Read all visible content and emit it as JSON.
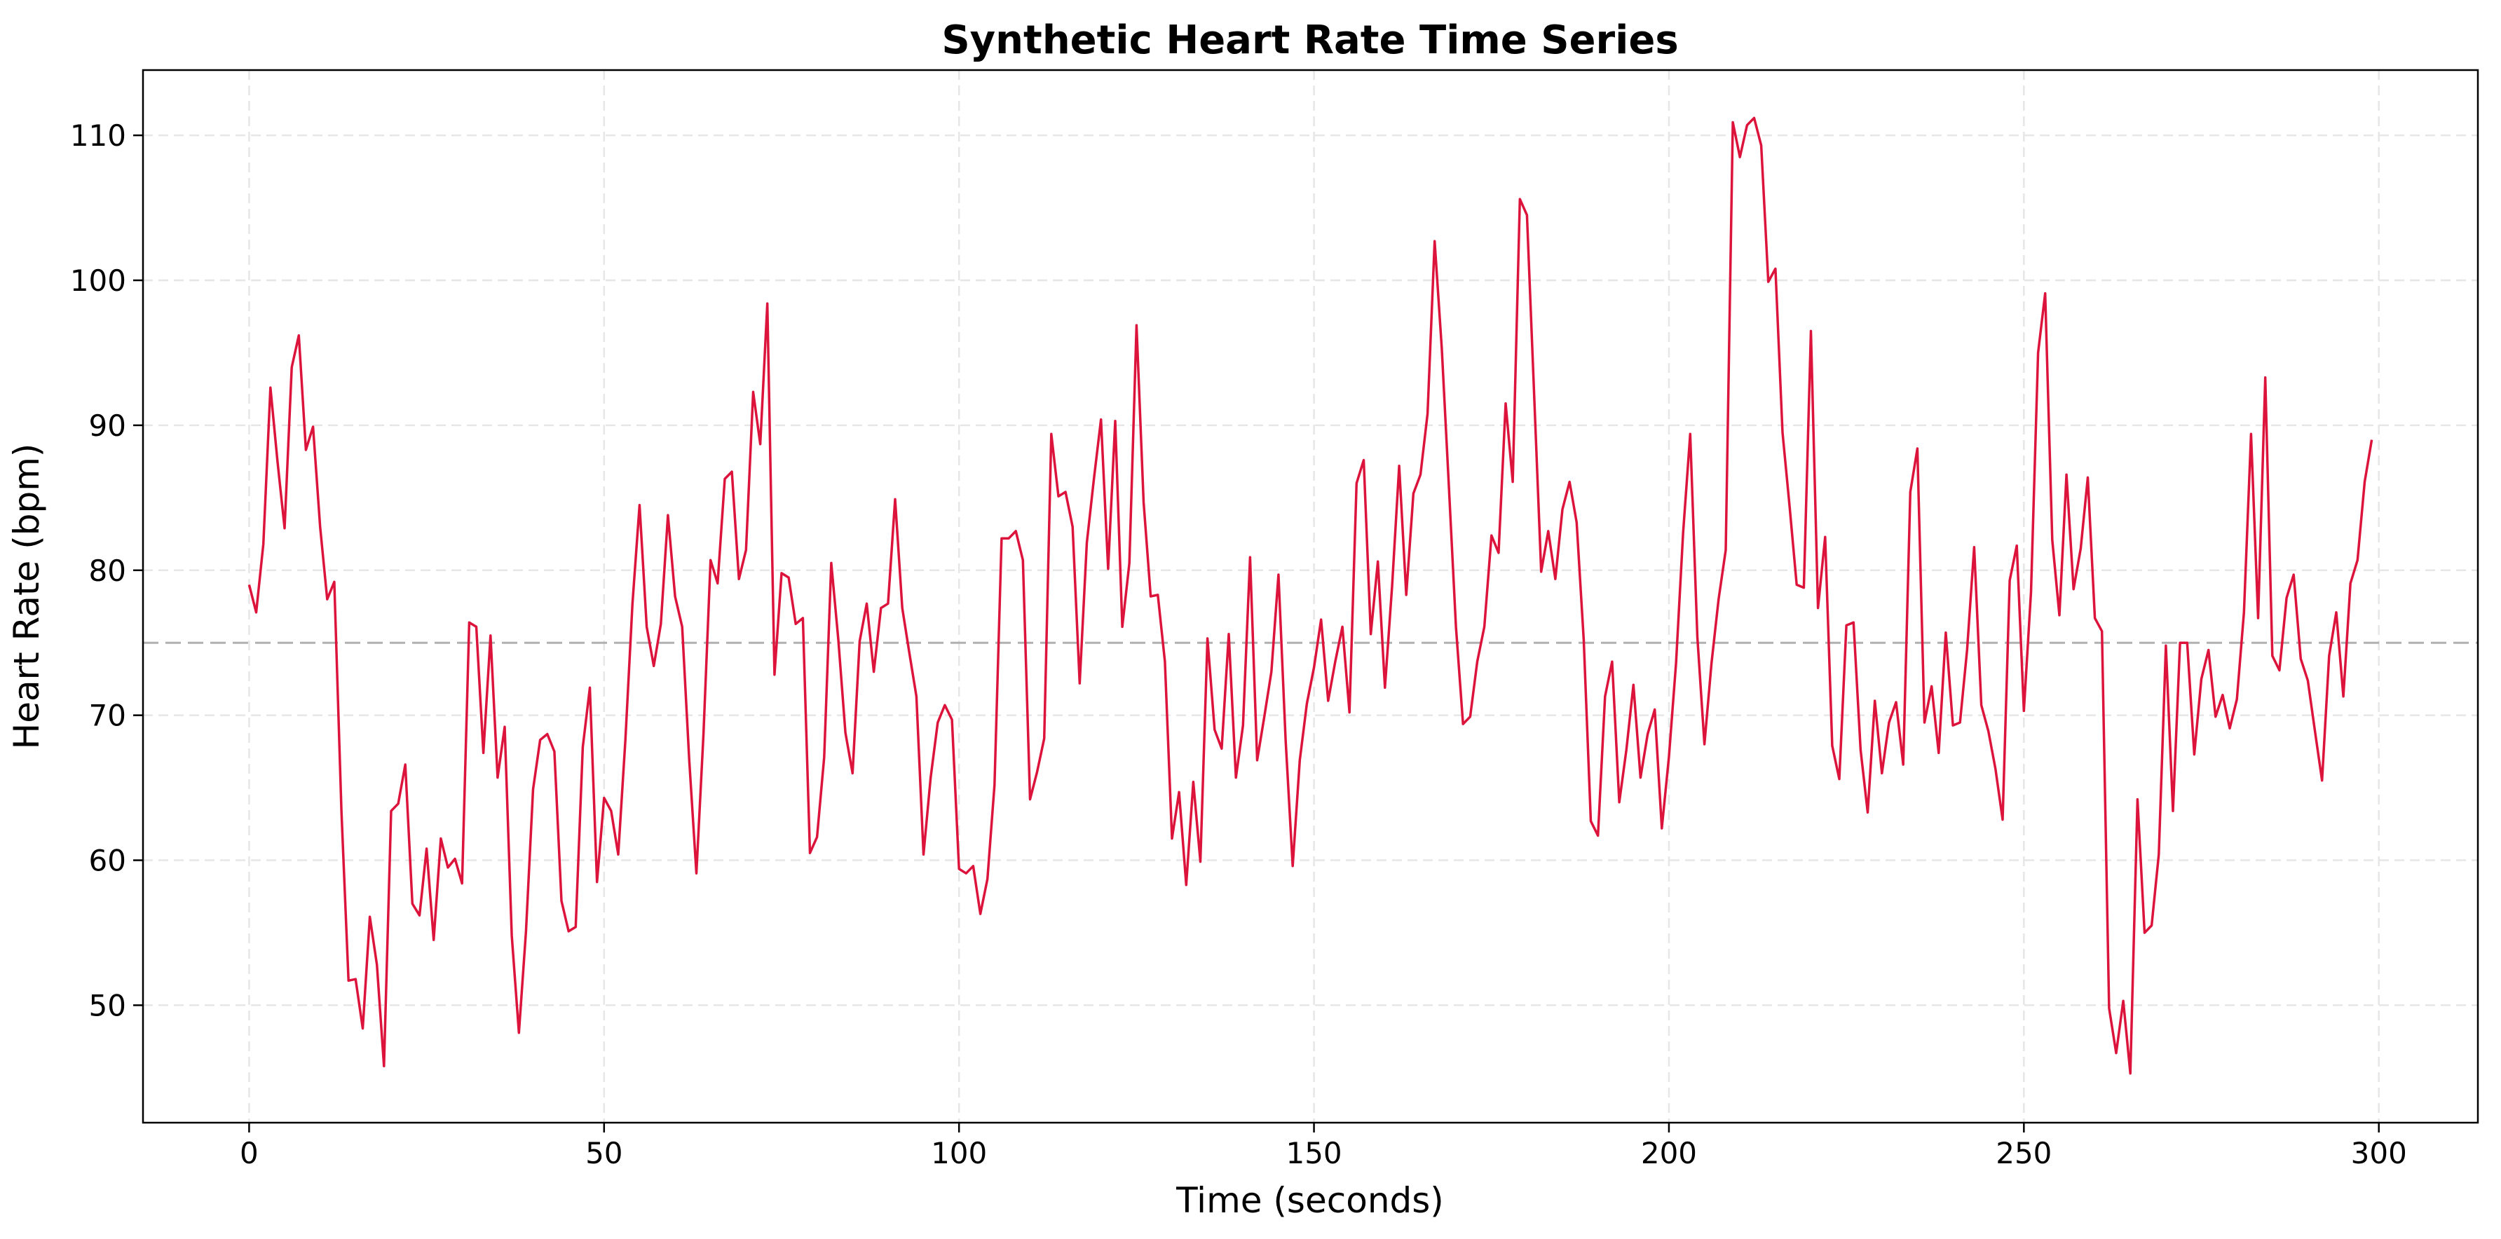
{
  "chart_data": {
    "type": "line",
    "title": "Synthetic Heart Rate Time Series",
    "xlabel": "Time (seconds)",
    "ylabel": "Heart Rate (bpm)",
    "xlim": [
      -14.95,
      313.95
    ],
    "ylim": [
      41.9,
      114.5
    ],
    "xticks": [
      0,
      50,
      100,
      150,
      200,
      250,
      300
    ],
    "yticks": [
      50,
      60,
      70,
      80,
      90,
      100,
      110
    ],
    "grid": true,
    "line_color": "#dc143c",
    "reference_line": {
      "y": 75,
      "color": "#b0b0b0",
      "style": "dashed"
    },
    "x_start": 0,
    "x_step": 1,
    "values": [
      79.0,
      77.1,
      81.8,
      92.6,
      87.5,
      82.9,
      94.0,
      96.2,
      88.3,
      89.9,
      83.0,
      78.0,
      79.2,
      63.4,
      51.7,
      51.8,
      48.4,
      56.1,
      52.8,
      45.8,
      63.4,
      63.9,
      66.6,
      57.0,
      56.2,
      60.8,
      54.5,
      61.5,
      59.5,
      60.1,
      58.4,
      76.4,
      76.1,
      67.4,
      75.5,
      65.7,
      69.2,
      54.8,
      48.1,
      55.1,
      64.9,
      68.3,
      68.7,
      67.5,
      57.2,
      55.1,
      55.4,
      67.8,
      71.9,
      58.5,
      64.3,
      63.4,
      60.4,
      68.3,
      77.7,
      84.5,
      76.1,
      73.4,
      76.3,
      83.8,
      78.2,
      76.1,
      66.9,
      59.1,
      68.7,
      80.7,
      79.1,
      86.3,
      86.8,
      79.4,
      81.4,
      92.3,
      88.7,
      98.4,
      72.8,
      79.8,
      79.5,
      76.3,
      76.7,
      60.5,
      61.6,
      67.1,
      80.5,
      75.2,
      68.8,
      66.0,
      75.1,
      77.7,
      73.0,
      77.4,
      77.7,
      84.9,
      77.4,
      74.3,
      71.3,
      60.4,
      65.7,
      69.5,
      70.7,
      69.7,
      59.4,
      59.1,
      59.6,
      56.3,
      58.7,
      65.2,
      82.2,
      82.2,
      82.7,
      80.7,
      64.2,
      66.1,
      68.4,
      89.4,
      85.1,
      85.4,
      83.0,
      72.2,
      81.9,
      86.3,
      90.4,
      80.1,
      90.3,
      76.1,
      80.5,
      96.9,
      84.7,
      78.2,
      78.3,
      73.7,
      61.5,
      64.7,
      58.3,
      65.4,
      59.9,
      75.3,
      69.0,
      67.7,
      75.6,
      65.7,
      69.3,
      80.9,
      66.9,
      69.9,
      73.0,
      79.7,
      68.3,
      59.6,
      66.9,
      70.8,
      73.3,
      76.6,
      71.0,
      73.7,
      76.1,
      70.2,
      86.0,
      87.6,
      75.6,
      80.6,
      71.9,
      78.9,
      87.2,
      78.3,
      85.3,
      86.6,
      90.8,
      102.7,
      95.3,
      85.8,
      76.1,
      69.4,
      69.9,
      73.7,
      76.1,
      82.4,
      81.2,
      91.5,
      86.1,
      105.6,
      104.5,
      92.3,
      79.9,
      82.7,
      79.4,
      84.2,
      86.1,
      83.3,
      75.2,
      62.7,
      61.7,
      71.3,
      73.7,
      64.0,
      67.6,
      72.1,
      65.7,
      68.7,
      70.4,
      62.2,
      67.1,
      73.6,
      82.6,
      89.4,
      75.4,
      68.0,
      73.6,
      78.0,
      81.4,
      110.9,
      108.5,
      110.7,
      111.2,
      109.3,
      99.9,
      100.8,
      89.5,
      84.4,
      79.0,
      78.8,
      96.5,
      77.4,
      82.3,
      67.9,
      65.6,
      76.2,
      76.4,
      67.6,
      63.3,
      71.0,
      66.0,
      69.5,
      70.9,
      66.6,
      85.4,
      88.4,
      69.5,
      72.0,
      67.4,
      75.7,
      69.3,
      69.5,
      74.5,
      81.6,
      70.7,
      68.9,
      66.3,
      62.8,
      79.3,
      81.7,
      70.3,
      78.5,
      95.0,
      99.1,
      82.1,
      76.9,
      86.6,
      78.7,
      81.5,
      86.4,
      76.7,
      75.8,
      49.8,
      46.7,
      50.3,
      45.3,
      64.2,
      55.0,
      55.5,
      60.4,
      74.8,
      63.4,
      75.0,
      75.0,
      67.3,
      72.5,
      74.5,
      69.9,
      71.4,
      69.1,
      71.1,
      77.1,
      89.4,
      76.7,
      93.3,
      74.1,
      73.1,
      78.1,
      79.7,
      73.9,
      72.4,
      68.9,
      65.5,
      74.1,
      77.1,
      71.3,
      79.1,
      80.7,
      86.1,
      89.0
    ]
  }
}
